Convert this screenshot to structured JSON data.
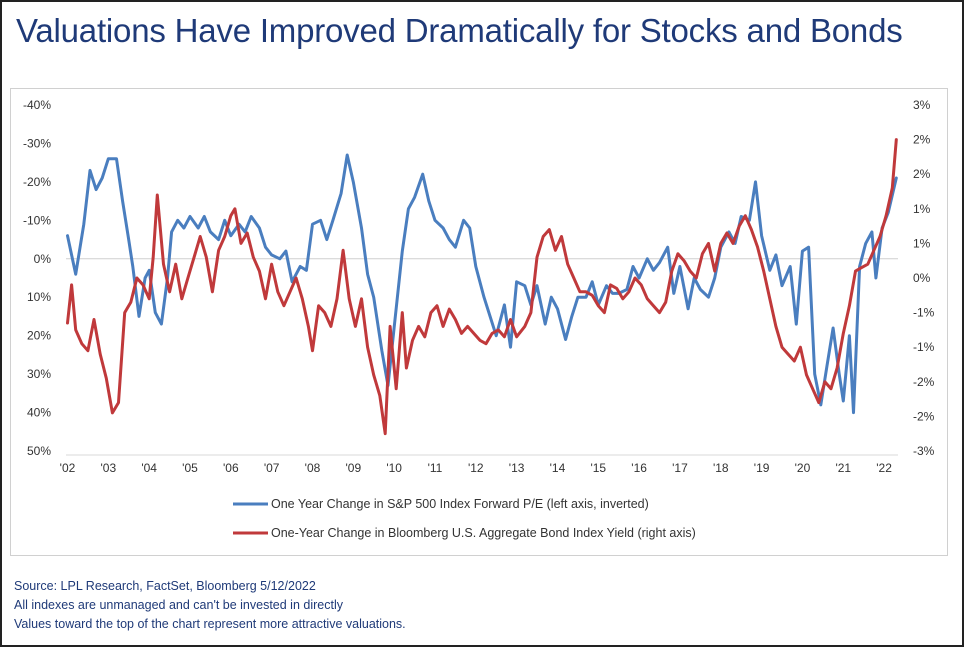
{
  "title": "Valuations Have Improved Dramatically for Stocks and Bonds",
  "footer": {
    "source": "Source: LPL Research, FactSet, Bloomberg 5/12/2022",
    "note1": "All indexes are unmanaged and can't be invested in directly",
    "note2": "Values toward the top of the chart represent more attractive valuations."
  },
  "colors": {
    "pe": "#4a7ebf",
    "bond": "#c0393b"
  },
  "chart_data": {
    "type": "line",
    "x_ticks": [
      "'02",
      "'03",
      "'04",
      "'05",
      "'06",
      "'07",
      "'08",
      "'09",
      "'10",
      "'11",
      "'12",
      "'13",
      "'14",
      "'15",
      "'16",
      "'17",
      "'18",
      "'19",
      "'20",
      "'21",
      "'22"
    ],
    "left_axis": {
      "ticks": [
        "-40%",
        "-30%",
        "-20%",
        "-10%",
        "0%",
        "10%",
        "20%",
        "30%",
        "40%",
        "50%"
      ],
      "range": [
        -40,
        50
      ],
      "inverted": true,
      "unit": "%"
    },
    "right_axis": {
      "ticks": [
        "3%",
        "2%",
        "2%",
        "1%",
        "1%",
        "0%",
        "-1%",
        "-1%",
        "-2%",
        "-2%",
        "-3%"
      ],
      "range": [
        -2.5,
        2.5
      ],
      "unit": "%"
    },
    "grid": false,
    "zero_line": true,
    "legend_position": "bottom",
    "series": [
      {
        "name": "One Year Change in S&P 500 Index Forward P/E (left axis, inverted)",
        "axis": "left",
        "points": [
          [
            2002.0,
            -6
          ],
          [
            2002.2,
            4
          ],
          [
            2002.4,
            -9
          ],
          [
            2002.55,
            -23
          ],
          [
            2002.7,
            -18
          ],
          [
            2002.85,
            -21
          ],
          [
            2003.0,
            -26
          ],
          [
            2003.2,
            -26
          ],
          [
            2003.35,
            -15
          ],
          [
            2003.5,
            -5
          ],
          [
            2003.6,
            2
          ],
          [
            2003.75,
            15
          ],
          [
            2003.9,
            5
          ],
          [
            2004.0,
            3
          ],
          [
            2004.15,
            14
          ],
          [
            2004.3,
            17
          ],
          [
            2004.45,
            5
          ],
          [
            2004.55,
            -7
          ],
          [
            2004.7,
            -10
          ],
          [
            2004.85,
            -8
          ],
          [
            2005.0,
            -11
          ],
          [
            2005.2,
            -8
          ],
          [
            2005.35,
            -11
          ],
          [
            2005.5,
            -7
          ],
          [
            2005.7,
            -5
          ],
          [
            2005.85,
            -10
          ],
          [
            2006.0,
            -6
          ],
          [
            2006.2,
            -9
          ],
          [
            2006.35,
            -7
          ],
          [
            2006.5,
            -11
          ],
          [
            2006.7,
            -8
          ],
          [
            2006.85,
            -3
          ],
          [
            2007.0,
            -1
          ],
          [
            2007.2,
            0
          ],
          [
            2007.35,
            -2
          ],
          [
            2007.5,
            6
          ],
          [
            2007.7,
            2
          ],
          [
            2007.85,
            3
          ],
          [
            2008.0,
            -9
          ],
          [
            2008.2,
            -10
          ],
          [
            2008.35,
            -5
          ],
          [
            2008.5,
            -10
          ],
          [
            2008.7,
            -17
          ],
          [
            2008.85,
            -27
          ],
          [
            2009.0,
            -20
          ],
          [
            2009.2,
            -8
          ],
          [
            2009.35,
            4
          ],
          [
            2009.5,
            10
          ],
          [
            2009.7,
            24
          ],
          [
            2009.85,
            33
          ],
          [
            2010.0,
            18
          ],
          [
            2010.2,
            -2
          ],
          [
            2010.35,
            -13
          ],
          [
            2010.5,
            -16
          ],
          [
            2010.7,
            -22
          ],
          [
            2010.85,
            -15
          ],
          [
            2011.0,
            -10
          ],
          [
            2011.2,
            -8
          ],
          [
            2011.35,
            -5
          ],
          [
            2011.5,
            -3
          ],
          [
            2011.7,
            -10
          ],
          [
            2011.85,
            -8
          ],
          [
            2012.0,
            2
          ],
          [
            2012.2,
            10
          ],
          [
            2012.35,
            15
          ],
          [
            2012.5,
            20
          ],
          [
            2012.7,
            12
          ],
          [
            2012.85,
            23
          ],
          [
            2013.0,
            6
          ],
          [
            2013.2,
            7
          ],
          [
            2013.35,
            12
          ],
          [
            2013.5,
            7
          ],
          [
            2013.7,
            17
          ],
          [
            2013.85,
            10
          ],
          [
            2014.0,
            13
          ],
          [
            2014.2,
            21
          ],
          [
            2014.35,
            15
          ],
          [
            2014.5,
            10
          ],
          [
            2014.7,
            10
          ],
          [
            2014.85,
            6
          ],
          [
            2015.0,
            12
          ],
          [
            2015.2,
            7
          ],
          [
            2015.35,
            9
          ],
          [
            2015.5,
            9
          ],
          [
            2015.7,
            8
          ],
          [
            2015.85,
            2
          ],
          [
            2016.0,
            5
          ],
          [
            2016.2,
            0
          ],
          [
            2016.35,
            3
          ],
          [
            2016.5,
            1
          ],
          [
            2016.7,
            -3
          ],
          [
            2016.85,
            9
          ],
          [
            2017.0,
            2
          ],
          [
            2017.2,
            13
          ],
          [
            2017.35,
            5
          ],
          [
            2017.5,
            8
          ],
          [
            2017.7,
            10
          ],
          [
            2017.85,
            5
          ],
          [
            2018.0,
            -3
          ],
          [
            2018.2,
            -7
          ],
          [
            2018.35,
            -4
          ],
          [
            2018.5,
            -11
          ],
          [
            2018.7,
            -10
          ],
          [
            2018.85,
            -20
          ],
          [
            2019.0,
            -6
          ],
          [
            2019.2,
            3
          ],
          [
            2019.35,
            -1
          ],
          [
            2019.5,
            7
          ],
          [
            2019.7,
            2
          ],
          [
            2019.85,
            17
          ],
          [
            2020.0,
            -2
          ],
          [
            2020.15,
            -3
          ],
          [
            2020.3,
            30
          ],
          [
            2020.45,
            38
          ],
          [
            2020.6,
            28
          ],
          [
            2020.75,
            18
          ],
          [
            2020.9,
            30
          ],
          [
            2021.0,
            37
          ],
          [
            2021.15,
            20
          ],
          [
            2021.25,
            40
          ],
          [
            2021.4,
            2
          ],
          [
            2021.55,
            -4
          ],
          [
            2021.7,
            -7
          ],
          [
            2021.8,
            5
          ],
          [
            2021.95,
            -8
          ],
          [
            2022.1,
            -12
          ],
          [
            2022.3,
            -21
          ]
        ]
      },
      {
        "name": "One-Year Change in Bloomberg U.S. Aggregate Bond Index Yield (right axis)",
        "axis": "right",
        "points": [
          [
            2002.0,
            -0.65
          ],
          [
            2002.1,
            -0.1
          ],
          [
            2002.2,
            -0.75
          ],
          [
            2002.35,
            -0.95
          ],
          [
            2002.5,
            -1.05
          ],
          [
            2002.65,
            -0.6
          ],
          [
            2002.8,
            -1.1
          ],
          [
            2002.95,
            -1.45
          ],
          [
            2003.1,
            -1.95
          ],
          [
            2003.25,
            -1.8
          ],
          [
            2003.4,
            -0.5
          ],
          [
            2003.55,
            -0.35
          ],
          [
            2003.7,
            0.0
          ],
          [
            2003.85,
            -0.1
          ],
          [
            2004.0,
            -0.3
          ],
          [
            2004.1,
            0.3
          ],
          [
            2004.2,
            1.2
          ],
          [
            2004.35,
            0.2
          ],
          [
            2004.5,
            -0.2
          ],
          [
            2004.65,
            0.2
          ],
          [
            2004.8,
            -0.3
          ],
          [
            2004.95,
            0.0
          ],
          [
            2005.1,
            0.3
          ],
          [
            2005.25,
            0.6
          ],
          [
            2005.4,
            0.3
          ],
          [
            2005.55,
            -0.2
          ],
          [
            2005.7,
            0.4
          ],
          [
            2005.85,
            0.6
          ],
          [
            2006.0,
            0.9
          ],
          [
            2006.1,
            1.0
          ],
          [
            2006.25,
            0.5
          ],
          [
            2006.4,
            0.65
          ],
          [
            2006.55,
            0.3
          ],
          [
            2006.7,
            0.1
          ],
          [
            2006.85,
            -0.3
          ],
          [
            2007.0,
            0.2
          ],
          [
            2007.15,
            -0.2
          ],
          [
            2007.3,
            -0.4
          ],
          [
            2007.45,
            -0.2
          ],
          [
            2007.6,
            0.0
          ],
          [
            2007.75,
            -0.3
          ],
          [
            2007.9,
            -0.7
          ],
          [
            2008.0,
            -1.05
          ],
          [
            2008.15,
            -0.4
          ],
          [
            2008.3,
            -0.5
          ],
          [
            2008.45,
            -0.7
          ],
          [
            2008.6,
            -0.3
          ],
          [
            2008.75,
            0.4
          ],
          [
            2008.9,
            -0.3
          ],
          [
            2009.05,
            -0.7
          ],
          [
            2009.2,
            -0.3
          ],
          [
            2009.35,
            -1.0
          ],
          [
            2009.5,
            -1.4
          ],
          [
            2009.65,
            -1.7
          ],
          [
            2009.78,
            -2.25
          ],
          [
            2009.9,
            -0.7
          ],
          [
            2010.05,
            -1.6
          ],
          [
            2010.2,
            -0.5
          ],
          [
            2010.3,
            -1.3
          ],
          [
            2010.45,
            -0.9
          ],
          [
            2010.6,
            -0.7
          ],
          [
            2010.75,
            -0.85
          ],
          [
            2010.9,
            -0.5
          ],
          [
            2011.05,
            -0.4
          ],
          [
            2011.2,
            -0.7
          ],
          [
            2011.35,
            -0.45
          ],
          [
            2011.5,
            -0.6
          ],
          [
            2011.65,
            -0.8
          ],
          [
            2011.8,
            -0.7
          ],
          [
            2011.95,
            -0.8
          ],
          [
            2012.1,
            -0.9
          ],
          [
            2012.25,
            -0.95
          ],
          [
            2012.4,
            -0.8
          ],
          [
            2012.55,
            -0.75
          ],
          [
            2012.7,
            -0.85
          ],
          [
            2012.85,
            -0.6
          ],
          [
            2013.0,
            -0.85
          ],
          [
            2013.2,
            -0.7
          ],
          [
            2013.35,
            -0.5
          ],
          [
            2013.5,
            0.3
          ],
          [
            2013.65,
            0.6
          ],
          [
            2013.8,
            0.7
          ],
          [
            2013.95,
            0.4
          ],
          [
            2014.1,
            0.6
          ],
          [
            2014.25,
            0.2
          ],
          [
            2014.4,
            0.0
          ],
          [
            2014.55,
            -0.2
          ],
          [
            2014.7,
            -0.2
          ],
          [
            2014.85,
            -0.25
          ],
          [
            2015.0,
            -0.4
          ],
          [
            2015.15,
            -0.5
          ],
          [
            2015.3,
            -0.1
          ],
          [
            2015.45,
            -0.15
          ],
          [
            2015.6,
            -0.3
          ],
          [
            2015.75,
            -0.2
          ],
          [
            2015.9,
            0.0
          ],
          [
            2016.05,
            -0.1
          ],
          [
            2016.2,
            -0.3
          ],
          [
            2016.35,
            -0.4
          ],
          [
            2016.5,
            -0.5
          ],
          [
            2016.65,
            -0.35
          ],
          [
            2016.8,
            0.1
          ],
          [
            2016.95,
            0.35
          ],
          [
            2017.1,
            0.25
          ],
          [
            2017.25,
            0.1
          ],
          [
            2017.4,
            0.0
          ],
          [
            2017.55,
            0.35
          ],
          [
            2017.7,
            0.5
          ],
          [
            2017.85,
            0.1
          ],
          [
            2018.0,
            0.5
          ],
          [
            2018.15,
            0.65
          ],
          [
            2018.3,
            0.5
          ],
          [
            2018.45,
            0.75
          ],
          [
            2018.6,
            0.9
          ],
          [
            2018.75,
            0.7
          ],
          [
            2018.9,
            0.45
          ],
          [
            2019.05,
            0.1
          ],
          [
            2019.2,
            -0.3
          ],
          [
            2019.35,
            -0.7
          ],
          [
            2019.5,
            -1.0
          ],
          [
            2019.65,
            -1.1
          ],
          [
            2019.8,
            -1.2
          ],
          [
            2019.95,
            -1.0
          ],
          [
            2020.1,
            -1.4
          ],
          [
            2020.25,
            -1.6
          ],
          [
            2020.4,
            -1.8
          ],
          [
            2020.55,
            -1.5
          ],
          [
            2020.7,
            -1.6
          ],
          [
            2020.85,
            -1.3
          ],
          [
            2021.0,
            -0.8
          ],
          [
            2021.15,
            -0.4
          ],
          [
            2021.3,
            0.1
          ],
          [
            2021.45,
            0.15
          ],
          [
            2021.6,
            0.2
          ],
          [
            2021.75,
            0.4
          ],
          [
            2021.9,
            0.6
          ],
          [
            2022.05,
            0.9
          ],
          [
            2022.2,
            1.3
          ],
          [
            2022.3,
            2.0
          ]
        ]
      }
    ]
  }
}
